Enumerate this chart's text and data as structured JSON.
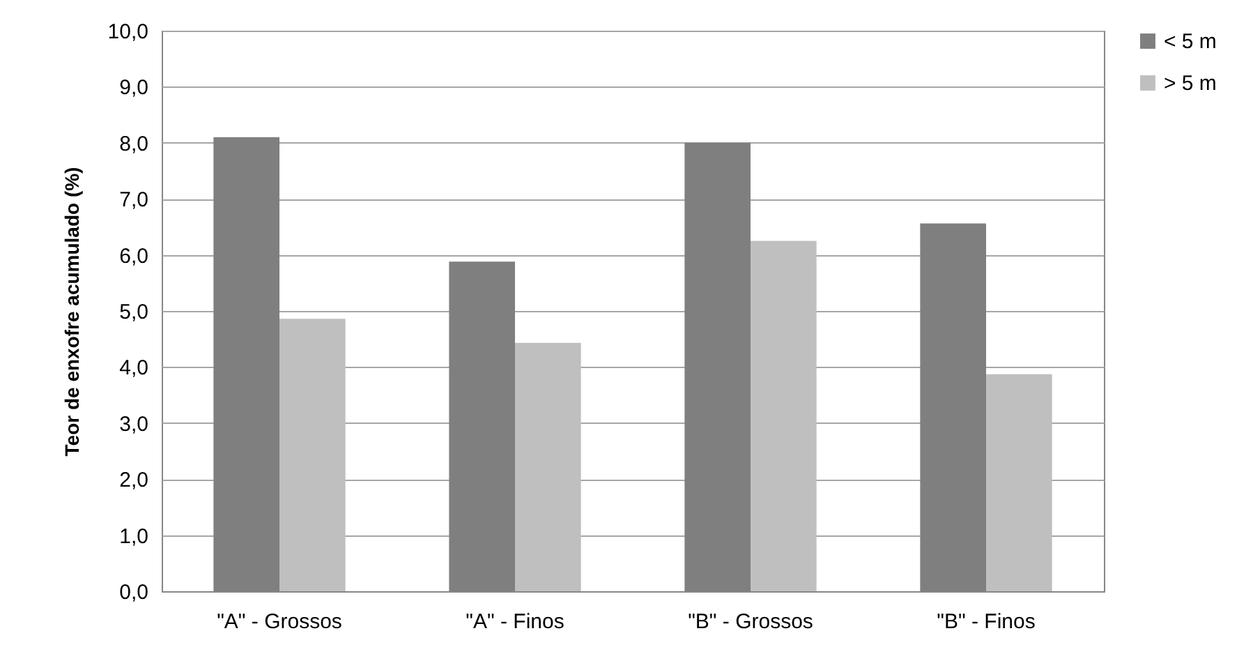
{
  "chart_data": {
    "type": "bar",
    "ylabel": "Teor de enxofre acumulado (%)",
    "categories": [
      "\"A\" - Grossos",
      "\"A\" - Finos",
      "\"B\" - Grossos",
      "\"B\" - Finos"
    ],
    "series": [
      {
        "name": "< 5 m",
        "color": "#7f7f7f",
        "values": [
          8.1,
          5.88,
          8.0,
          6.56
        ]
      },
      {
        "name": "> 5 m",
        "color": "#bfbfbf",
        "values": [
          4.86,
          4.43,
          6.25,
          3.87
        ]
      }
    ],
    "ylim": [
      0,
      10
    ],
    "yticks": [
      {
        "value": 0,
        "label": "0,0"
      },
      {
        "value": 1,
        "label": "1,0"
      },
      {
        "value": 2,
        "label": "2,0"
      },
      {
        "value": 3,
        "label": "3,0"
      },
      {
        "value": 4,
        "label": "4,0"
      },
      {
        "value": 5,
        "label": "5,0"
      },
      {
        "value": 6,
        "label": "6,0"
      },
      {
        "value": 7,
        "label": "7,0"
      },
      {
        "value": 8,
        "label": "8,0"
      },
      {
        "value": 9,
        "label": "9,0"
      },
      {
        "value": 10,
        "label": "10,0"
      }
    ],
    "grid": "y",
    "legend": "right"
  }
}
